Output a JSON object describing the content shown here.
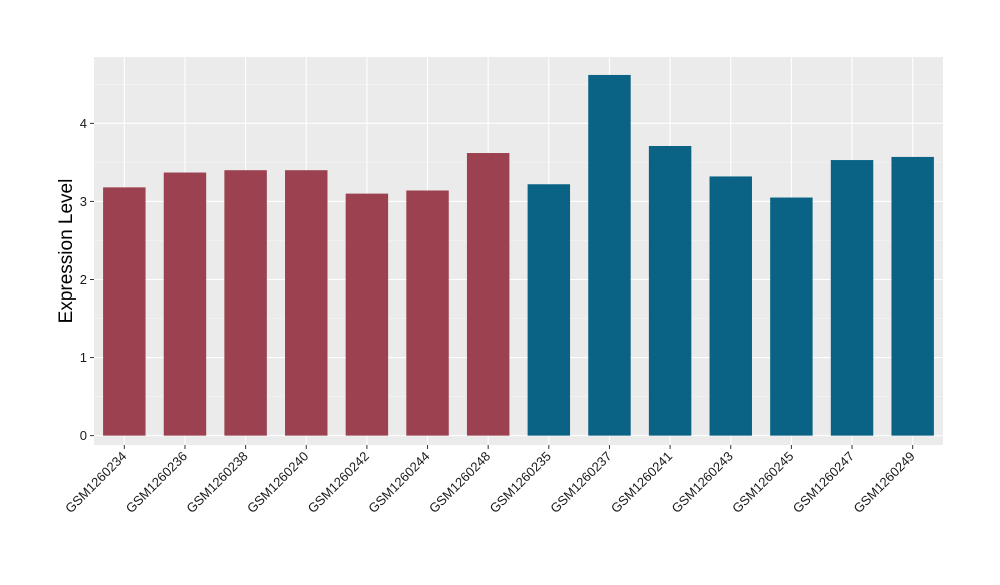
{
  "chart_data": {
    "type": "bar",
    "title": "",
    "xlabel": "",
    "ylabel": "Expression Level",
    "ylim": [
      -0.12,
      4.85
    ],
    "yticks": [
      0,
      1,
      2,
      3,
      4
    ],
    "grid": true,
    "legend": "none",
    "categories": [
      "GSM1260234",
      "GSM1260236",
      "GSM1260238",
      "GSM1260240",
      "GSM1260242",
      "GSM1260244",
      "GSM1260248",
      "GSM1260235",
      "GSM1260237",
      "GSM1260241",
      "GSM1260243",
      "GSM1260245",
      "GSM1260247",
      "GSM1260249"
    ],
    "values": [
      3.18,
      3.37,
      3.4,
      3.4,
      3.1,
      3.14,
      3.62,
      3.22,
      4.62,
      3.71,
      3.32,
      3.05,
      3.53,
      3.57
    ],
    "bar_colors": [
      "#9b4150",
      "#9b4150",
      "#9b4150",
      "#9b4150",
      "#9b4150",
      "#9b4150",
      "#9b4150",
      "#0a6384",
      "#0a6384",
      "#0a6384",
      "#0a6384",
      "#0a6384",
      "#0a6384",
      "#0a6384"
    ],
    "colors": {
      "panel_background": "#ebebeb",
      "grid_major": "#ffffff",
      "grid_minor": "#f5f5f5"
    }
  }
}
